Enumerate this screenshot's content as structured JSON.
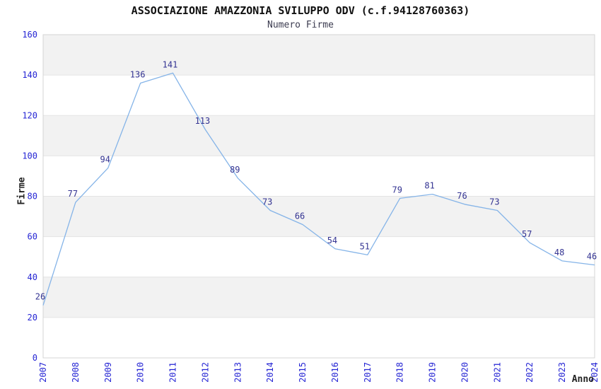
{
  "header": {
    "title": "ASSOCIAZIONE AMAZZONIA SVILUPPO ODV (c.f.94128760363)",
    "subtitle": "Numero Firme"
  },
  "chart_data": {
    "type": "line",
    "title": "ASSOCIAZIONE AMAZZONIA SVILUPPO ODV (c.f.94128760363)",
    "subtitle": "Numero Firme",
    "xlabel": "Anno",
    "ylabel": "Firme",
    "categories": [
      "2007",
      "2008",
      "2009",
      "2010",
      "2011",
      "2012",
      "2013",
      "2014",
      "2015",
      "2016",
      "2017",
      "2018",
      "2019",
      "2020",
      "2021",
      "2022",
      "2023",
      "2024"
    ],
    "values": [
      26,
      77,
      94,
      136,
      141,
      113,
      89,
      73,
      66,
      54,
      51,
      79,
      81,
      76,
      73,
      57,
      48,
      46
    ],
    "ylim": [
      0,
      160
    ],
    "ytick_step": 20,
    "grid": true,
    "legend": "none",
    "band_pattern": "alternating-horizontal",
    "colors": {
      "line": "#85b4e8",
      "data_label": "#333392",
      "tick_label": "#2525d4",
      "band": "#f2f2f2",
      "grid": "#e4e4e4",
      "plot_border": "#d4d4d4",
      "title": "#111111",
      "subtitle": "#3c3c50",
      "axis_title": "#222222",
      "background": "#ffffff"
    }
  }
}
